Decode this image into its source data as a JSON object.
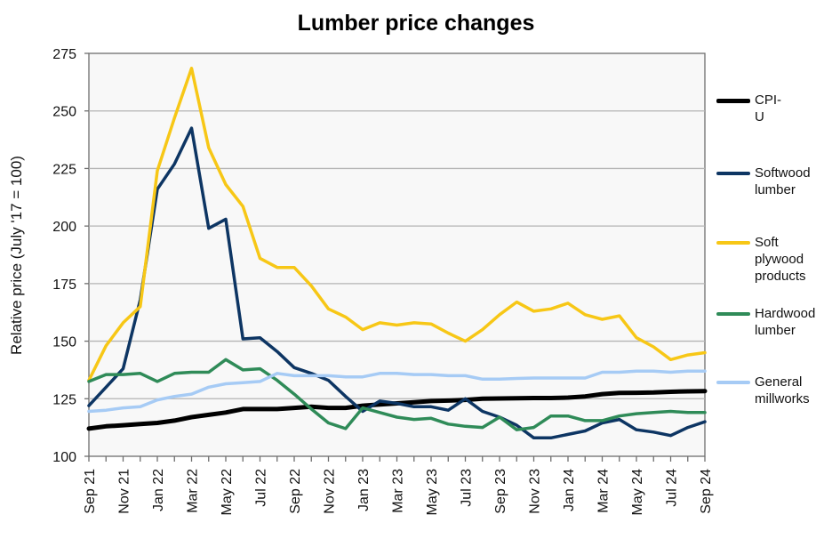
{
  "chart_data": {
    "type": "line",
    "title": "Lumber price changes",
    "xlabel": "",
    "ylabel": "Relative price (July '17 = 100)",
    "ylim": [
      100,
      275
    ],
    "yticks": [
      100,
      125,
      150,
      175,
      200,
      225,
      250,
      275
    ],
    "grid": true,
    "legend_position": "right",
    "x": [
      "Sep 21",
      "Oct 21",
      "Nov 21",
      "Dec 21",
      "Jan 22",
      "Feb 22",
      "Mar 22",
      "Apr 22",
      "May 22",
      "Jun 22",
      "Jul 22",
      "Aug 22",
      "Sep 22",
      "Oct 22",
      "Nov 22",
      "Dec 22",
      "Jan 23",
      "Feb 23",
      "Mar 23",
      "Apr 23",
      "May 23",
      "Jun 23",
      "Jul 23",
      "Aug 23",
      "Sep 23",
      "Oct 23",
      "Nov 23",
      "Dec 23",
      "Jan 24",
      "Feb 24",
      "Mar 24",
      "Apr 24",
      "May 24",
      "Jun 24",
      "Jul 24",
      "Aug 24",
      "Sep 24"
    ],
    "xtick_labels": [
      "Sep 21",
      "Nov 21",
      "Jan 22",
      "Mar 22",
      "May 22",
      "Jul 22",
      "Sep 22",
      "Nov 22",
      "Jan 23",
      "Mar 23",
      "May 23",
      "Jul 23",
      "Sep 23",
      "Nov 23",
      "Jan 24",
      "Mar 24",
      "May 24",
      "Jul 24",
      "Sep 24"
    ],
    "series": [
      {
        "name": "CPI-U",
        "color": "#000000",
        "width": 5,
        "values": [
          112,
          113,
          113.5,
          114,
          114.5,
          115.5,
          117,
          118,
          119,
          120.5,
          120.5,
          120.5,
          121,
          121.5,
          121,
          121,
          122,
          122.5,
          123,
          123.5,
          124,
          124.2,
          124.5,
          125,
          125.1,
          125.2,
          125.3,
          125.3,
          125.5,
          126,
          127,
          127.5,
          127.6,
          127.7,
          128,
          128.2,
          128.3
        ]
      },
      {
        "name": "Softwood lumber",
        "color": "#0d3563",
        "width": 3.5,
        "values": [
          122,
          130,
          138,
          168,
          216,
          227,
          242.5,
          199,
          203,
          151,
          151.5,
          145.5,
          138.5,
          136,
          133,
          126,
          119.5,
          124,
          123,
          121.5,
          121.5,
          120,
          125,
          119.5,
          117,
          113.5,
          108,
          108,
          109.5,
          111,
          114.5,
          116,
          111.5,
          110.5,
          109,
          112.5,
          115
        ]
      },
      {
        "name": "Soft plywood products",
        "color": "#f7c716",
        "width": 3.5,
        "values": [
          133,
          148,
          158,
          165,
          224,
          247,
          268.5,
          234,
          218,
          208.5,
          186,
          182,
          182,
          174,
          164,
          160.5,
          155,
          158,
          157,
          158,
          157.5,
          153.5,
          150,
          155,
          161.5,
          167,
          163,
          164,
          166.5,
          161.5,
          159.5,
          161,
          151.5,
          147.5,
          142,
          144,
          145
        ]
      },
      {
        "name": "Hardwood lumber",
        "color": "#2f8b58",
        "width": 3.5,
        "values": [
          132.5,
          135.5,
          135.5,
          136,
          132.5,
          136,
          136.5,
          136.5,
          142,
          137.5,
          138,
          133,
          127,
          120.5,
          114.5,
          112,
          121,
          119,
          117,
          116,
          116.5,
          114,
          113,
          112.5,
          117,
          111.5,
          112.5,
          117.5,
          117.5,
          115.5,
          115.5,
          117.5,
          118.5,
          119,
          119.5,
          119,
          119
        ]
      },
      {
        "name": "General millworks",
        "color": "#a6cbf5",
        "width": 3.5,
        "values": [
          119.5,
          120,
          121,
          121.5,
          124.5,
          126,
          127,
          130,
          131.5,
          132,
          132.5,
          136,
          135,
          135,
          135,
          134.5,
          134.5,
          136,
          136,
          135.5,
          135.5,
          135,
          135,
          133.5,
          133.5,
          133.8,
          134,
          134,
          134,
          134,
          136.5,
          136.5,
          137,
          137,
          136.5,
          137,
          137
        ]
      }
    ]
  },
  "legend": [
    {
      "label": "CPI-U"
    },
    {
      "label": "Softwood\nlumber"
    },
    {
      "label": "Soft\nplywood\nproducts"
    },
    {
      "label": "Hardwood\nlumber"
    },
    {
      "label": "General\nmillworks"
    }
  ]
}
